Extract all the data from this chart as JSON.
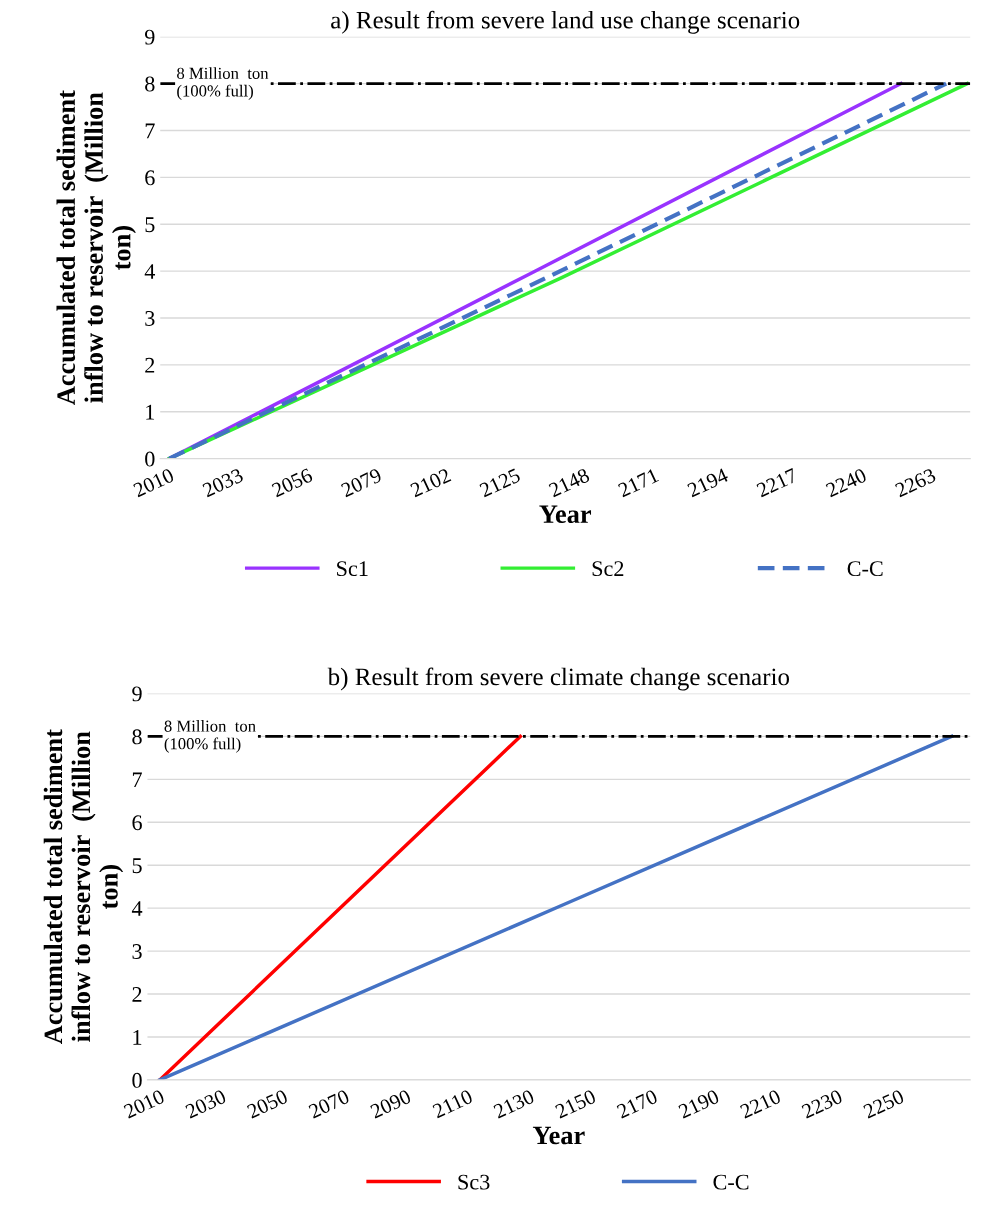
{
  "chart_data": [
    {
      "type": "line",
      "title": "a) Result from severe land use change scenario",
      "xlabel": "Year",
      "ylabel": "Accumulated total sediment\ninflow to reservoir  (Million\nton)",
      "xlim": [
        2007,
        2276
      ],
      "xticks": [
        2010,
        2033,
        2056,
        2079,
        2102,
        2125,
        2148,
        2171,
        2194,
        2217,
        2240,
        2263
      ],
      "ylim": [
        0,
        9
      ],
      "yticks": [
        0,
        1,
        2,
        3,
        4,
        5,
        6,
        7,
        8,
        9
      ],
      "grid": "y",
      "legend": "bottom",
      "series": [
        {
          "name": "Sc1",
          "color": "#9933ff",
          "x": [
            2010,
            2130,
            2253
          ],
          "values": [
            0,
            3.95,
            8
          ],
          "line_style": "solid"
        },
        {
          "name": "Sc2",
          "color": "#33ee33",
          "x": [
            2010,
            2140,
            2275
          ],
          "values": [
            0,
            3.85,
            8
          ],
          "line_style": "solid"
        },
        {
          "name": "C-C",
          "color": "#4472c4",
          "x": [
            2010,
            2135,
            2268
          ],
          "values": [
            0,
            3.85,
            8
          ],
          "line_style": "dashed"
        }
      ],
      "ref_lines": [
        {
          "axis": "y",
          "value": 8,
          "label": "8 Million  ton\n(100% full)",
          "color": "#000000",
          "line_style": "dashdot"
        }
      ]
    },
    {
      "type": "line",
      "title": "b) Result from severe climate change scenario",
      "xlabel": "Year",
      "ylabel": "Accumulated total sediment\ninflow to reservoir  (Million\nton)",
      "xlim": [
        2006,
        2273
      ],
      "xticks": [
        2010,
        2030,
        2050,
        2070,
        2090,
        2110,
        2130,
        2150,
        2170,
        2190,
        2210,
        2230,
        2250
      ],
      "ylim": [
        0,
        9
      ],
      "yticks": [
        0,
        1,
        2,
        3,
        4,
        5,
        6,
        7,
        8,
        9
      ],
      "grid": "y",
      "legend": "bottom",
      "series": [
        {
          "name": "Sc3",
          "color": "#ff0000",
          "x": [
            2010,
            2070,
            2127
          ],
          "values": [
            0,
            4.1,
            8
          ],
          "line_style": "solid"
        },
        {
          "name": "C-C",
          "color": "#4472c4",
          "x": [
            2010,
            2140,
            2267
          ],
          "values": [
            0,
            4.05,
            8
          ],
          "line_style": "solid"
        }
      ],
      "ref_lines": [
        {
          "axis": "y",
          "value": 8,
          "label": "8 Million  ton\n(100% full)",
          "color": "#000000",
          "line_style": "dashdot"
        }
      ]
    }
  ]
}
